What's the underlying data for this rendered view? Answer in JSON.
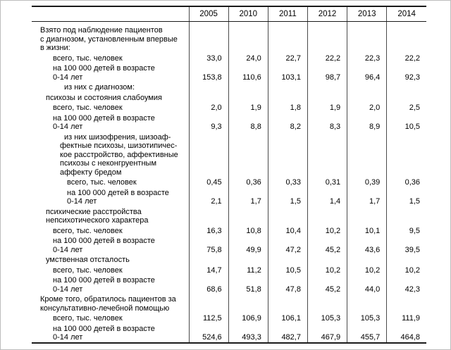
{
  "table": {
    "years": [
      "2005",
      "2010",
      "2011",
      "2012",
      "2013",
      "2014"
    ],
    "rows": [
      {
        "type": "section",
        "level": 0,
        "hang": false,
        "lines": [
          "Взято под наблюдение пациентов",
          "с диагнозом, установленным впервые",
          "в жизни:"
        ],
        "values": null
      },
      {
        "type": "data",
        "level": 2,
        "hang": false,
        "lines": [
          "всего, тыс. человек"
        ],
        "values": [
          "33,0",
          "24,0",
          "22,7",
          "22,2",
          "22,3",
          "22,2"
        ]
      },
      {
        "type": "data",
        "level": 2,
        "hang": false,
        "lines": [
          "на 100 000 детей в возрасте",
          "0-14 лет"
        ],
        "values": [
          "153,8",
          "110,6",
          "103,1",
          "98,7",
          "96,4",
          "92,3"
        ]
      },
      {
        "type": "subheader",
        "level": 3,
        "hang": true,
        "lines": [
          "из них с диагнозом:"
        ],
        "values": null
      },
      {
        "type": "category",
        "level": 1,
        "hang": false,
        "lines": [
          "психозы и состояния слабоумия"
        ],
        "values": null
      },
      {
        "type": "data",
        "level": 2,
        "hang": false,
        "lines": [
          "всего, тыс. человек"
        ],
        "values": [
          "2,0",
          "1,9",
          "1,8",
          "1,9",
          "2,0",
          "2,5"
        ]
      },
      {
        "type": "data",
        "level": 2,
        "hang": false,
        "lines": [
          "на 100 000 детей в возрасте",
          "0-14 лет"
        ],
        "values": [
          "9,3",
          "8,8",
          "8,2",
          "8,3",
          "8,9",
          "10,5"
        ]
      },
      {
        "type": "subheader",
        "level": 3,
        "hang": true,
        "lines": [
          "из них шизофрения, шизоаф-",
          "фектные психозы, шизотипичес-",
          "кое расстройство, аффективные",
          "психозы с неконгруентным",
          "аффекту бредом"
        ],
        "values": null
      },
      {
        "type": "data",
        "level": 4,
        "hang": false,
        "lines": [
          "всего, тыс. человек"
        ],
        "values": [
          "0,45",
          "0,36",
          "0,33",
          "0,31",
          "0,39",
          "0,36"
        ]
      },
      {
        "type": "data",
        "level": 4,
        "hang": false,
        "lines": [
          "на 100 000 детей в возрасте",
          "0-14 лет"
        ],
        "values": [
          "2,1",
          "1,7",
          "1,5",
          "1,4",
          "1,7",
          "1,5"
        ]
      },
      {
        "type": "category",
        "level": 1,
        "hang": false,
        "lines": [
          "психические расстройства",
          "непсихотического характера"
        ],
        "values": null
      },
      {
        "type": "data",
        "level": 2,
        "hang": false,
        "lines": [
          "всего, тыс. человек"
        ],
        "values": [
          "16,3",
          "10,8",
          "10,4",
          "10,2",
          "10,1",
          "9,5"
        ]
      },
      {
        "type": "data",
        "level": 2,
        "hang": false,
        "lines": [
          "на 100 000 детей в возрасте",
          "0-14 лет"
        ],
        "values": [
          "75,8",
          "49,9",
          "47,2",
          "45,2",
          "43,6",
          "39,5"
        ]
      },
      {
        "type": "category",
        "level": 1,
        "hang": false,
        "lines": [
          "умственная отсталость"
        ],
        "values": null
      },
      {
        "type": "data",
        "level": 2,
        "hang": false,
        "lines": [
          "всего, тыс. человек"
        ],
        "values": [
          "14,7",
          "11,2",
          "10,5",
          "10,2",
          "10,2",
          "10,2"
        ]
      },
      {
        "type": "data",
        "level": 2,
        "hang": false,
        "lines": [
          "на 100 000 детей в возрасте",
          "0-14 лет"
        ],
        "values": [
          "68,6",
          "51,8",
          "47,8",
          "45,2",
          "44,0",
          "42,3"
        ]
      },
      {
        "type": "section",
        "level": 0,
        "hang": false,
        "lines": [
          "Кроме того, обратилось пациентов за",
          "консультативно-лечебной помощью"
        ],
        "values": null
      },
      {
        "type": "data",
        "level": 2,
        "hang": false,
        "lines": [
          "всего, тыс. человек"
        ],
        "values": [
          "112,5",
          "106,9",
          "106,1",
          "105,3",
          "105,3",
          "111,9"
        ]
      },
      {
        "type": "data",
        "level": 2,
        "hang": false,
        "lines": [
          "на 100 000 детей в возрасте",
          "0-14 лет"
        ],
        "values": [
          "524,6",
          "493,3",
          "482,7",
          "467,9",
          "455,7",
          "464,8"
        ]
      }
    ]
  }
}
